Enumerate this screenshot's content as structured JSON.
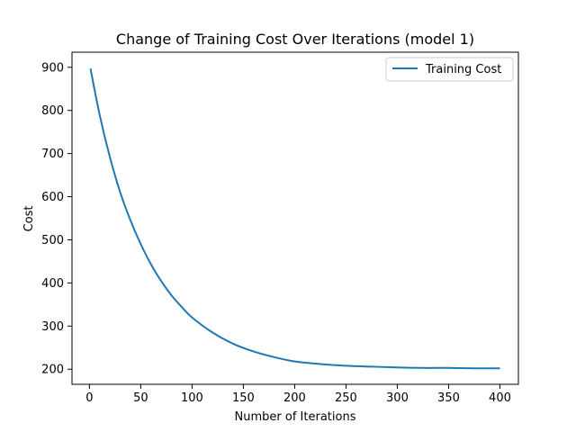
{
  "chart_data": {
    "type": "line",
    "title": "Change of Training Cost Over Iterations (model 1)",
    "xlabel": "Number of Iterations",
    "ylabel": "Cost",
    "xlim": [
      -17,
      418
    ],
    "ylim": [
      165,
      935
    ],
    "xticks": [
      0,
      50,
      100,
      150,
      200,
      250,
      300,
      350,
      400
    ],
    "yticks": [
      200,
      300,
      400,
      500,
      600,
      700,
      800,
      900
    ],
    "grid": false,
    "legend_position": "upper right",
    "series": [
      {
        "name": "Training Cost",
        "color": "#1f77b4",
        "x": [
          1,
          10,
          20,
          30,
          40,
          50,
          60,
          70,
          80,
          90,
          100,
          120,
          140,
          160,
          180,
          200,
          225,
          250,
          275,
          300,
          325,
          350,
          375,
          400
        ],
        "y": [
          897,
          789,
          691,
          610,
          545,
          490,
          443,
          404,
          371,
          344,
          320,
          285,
          259,
          241,
          228,
          218,
          212,
          208,
          206,
          204,
          203,
          203,
          202,
          202
        ]
      }
    ]
  }
}
